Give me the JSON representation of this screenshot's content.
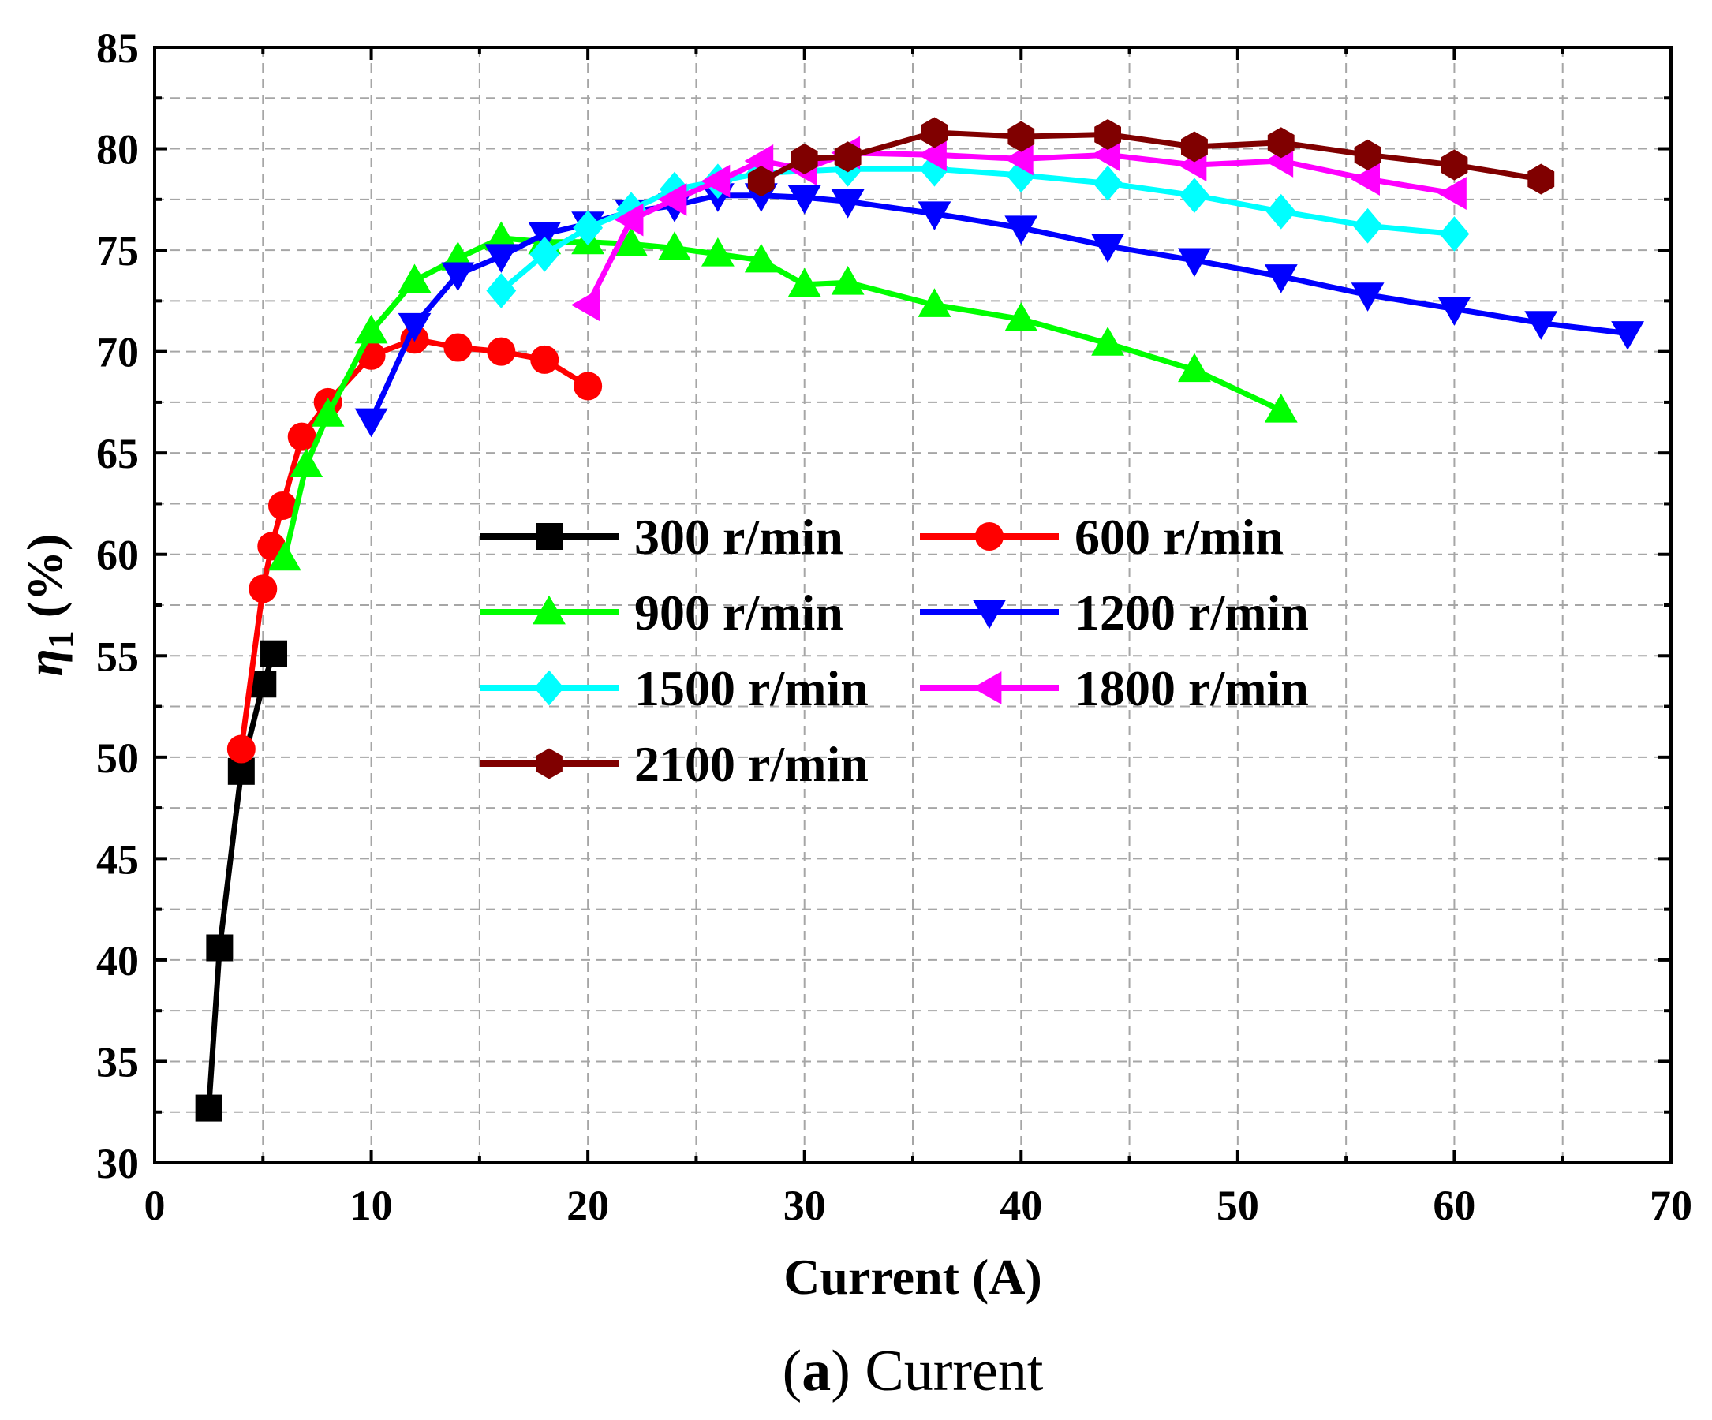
{
  "chart_data": {
    "type": "line",
    "title": "",
    "xlabel": "Current (A)",
    "ylabel_symbol": "η",
    "ylabel_subscript": "1",
    "ylabel_unit": "(%)",
    "xlim": [
      0,
      70
    ],
    "ylim": [
      30,
      85
    ],
    "xticks": [
      "0",
      "10",
      "20",
      "30",
      "40",
      "50",
      "60",
      "70"
    ],
    "yticks": [
      "30",
      "35",
      "40",
      "45",
      "50",
      "55",
      "60",
      "65",
      "70",
      "75",
      "80",
      "85"
    ],
    "grid": true,
    "legend_position": "center",
    "caption_bold": "a",
    "caption_rest": "Current",
    "series": [
      {
        "name": "300 r/min",
        "color": "#000000",
        "marker": "square",
        "x": [
          2.5,
          3,
          4,
          5,
          5.5
        ],
        "y": [
          32.7,
          40.6,
          49.3,
          53.6,
          55.1
        ]
      },
      {
        "name": "600 r/min",
        "color": "#ff0000",
        "marker": "circle",
        "x": [
          4,
          5,
          5.4,
          5.9,
          6.8,
          8,
          10,
          12,
          14,
          16,
          18,
          20
        ],
        "y": [
          50.4,
          58.3,
          60.4,
          62.4,
          65.8,
          67.5,
          69.8,
          70.6,
          70.2,
          70.0,
          69.6,
          68.3
        ]
      },
      {
        "name": "900 r/min",
        "color": "#00ff00",
        "marker": "triangle-up",
        "x": [
          6,
          7,
          8,
          10,
          12,
          14,
          16,
          18,
          20,
          22,
          24,
          26,
          28,
          30,
          32,
          36,
          40,
          44,
          48,
          52
        ],
        "y": [
          59.8,
          64.4,
          66.9,
          71.0,
          73.5,
          74.6,
          75.6,
          75.4,
          75.4,
          75.3,
          75.1,
          74.8,
          74.5,
          73.3,
          73.4,
          72.3,
          71.6,
          70.4,
          69.1,
          67.1
        ]
      },
      {
        "name": "1200 r/min",
        "color": "#0000ff",
        "marker": "triangle-down",
        "x": [
          10,
          12,
          14,
          16,
          18,
          20,
          22,
          24,
          26,
          28,
          30,
          32,
          36,
          40,
          44,
          48,
          52,
          56,
          60,
          64,
          68
        ],
        "y": [
          66.6,
          71.3,
          73.8,
          74.7,
          75.8,
          76.3,
          76.9,
          77.2,
          77.7,
          77.7,
          77.6,
          77.4,
          76.8,
          76.1,
          75.2,
          74.5,
          73.7,
          72.8,
          72.1,
          71.4,
          70.9
        ]
      },
      {
        "name": "1500 r/min",
        "color": "#00ffff",
        "marker": "diamond",
        "x": [
          16,
          18,
          20,
          22,
          24,
          26,
          28,
          32,
          36,
          40,
          44,
          48,
          52,
          56,
          60
        ],
        "y": [
          73.0,
          74.8,
          76.1,
          77.0,
          78.0,
          78.4,
          78.8,
          79.0,
          79.0,
          78.7,
          78.3,
          77.7,
          76.9,
          76.2,
          75.8
        ]
      },
      {
        "name": "1800 r/min",
        "color": "#ff00ff",
        "marker": "triangle-left",
        "x": [
          20,
          22,
          24,
          26,
          28,
          30,
          32,
          36,
          40,
          44,
          48,
          52,
          56,
          60
        ],
        "y": [
          72.3,
          76.5,
          77.5,
          78.4,
          79.4,
          79.0,
          79.8,
          79.7,
          79.5,
          79.7,
          79.2,
          79.4,
          78.5,
          77.8
        ]
      },
      {
        "name": "2100 r/min",
        "color": "#800000",
        "marker": "hexagon",
        "x": [
          28,
          30,
          32,
          36,
          40,
          44,
          48,
          52,
          56,
          60,
          64
        ],
        "y": [
          78.4,
          79.5,
          79.6,
          80.8,
          80.6,
          80.7,
          80.1,
          80.3,
          79.7,
          79.2,
          78.5
        ]
      }
    ]
  }
}
